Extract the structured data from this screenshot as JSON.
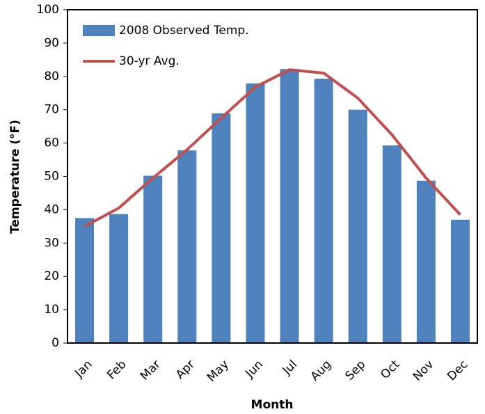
{
  "chart_data": {
    "type": "bar",
    "x_label": "Month",
    "y_label": "Temperature (°F)",
    "categories": [
      "Jan",
      "Feb",
      "Mar",
      "Apr",
      "May",
      "Jun",
      "Jul",
      "Aug",
      "Sep",
      "Oct",
      "Nov",
      "Dec"
    ],
    "series": [
      {
        "name": "2008 Observed Temp.",
        "type": "bar",
        "color": "#4f81bd",
        "values": [
          37.5,
          38.7,
          50.2,
          57.8,
          68.9,
          77.9,
          82.2,
          79.3,
          70,
          59.3,
          48.7,
          37
        ]
      },
      {
        "name": "30-yr Avg.",
        "type": "line",
        "color": "#c0504d",
        "values": [
          35,
          40.5,
          49.5,
          58,
          67.5,
          76.8,
          82,
          81,
          73.5,
          62.5,
          49.5,
          38.5
        ]
      }
    ],
    "ylim": [
      0,
      100
    ],
    "yticks": [
      0,
      10,
      20,
      30,
      40,
      50,
      60,
      70,
      80,
      90,
      100
    ],
    "legend": "top-left"
  }
}
